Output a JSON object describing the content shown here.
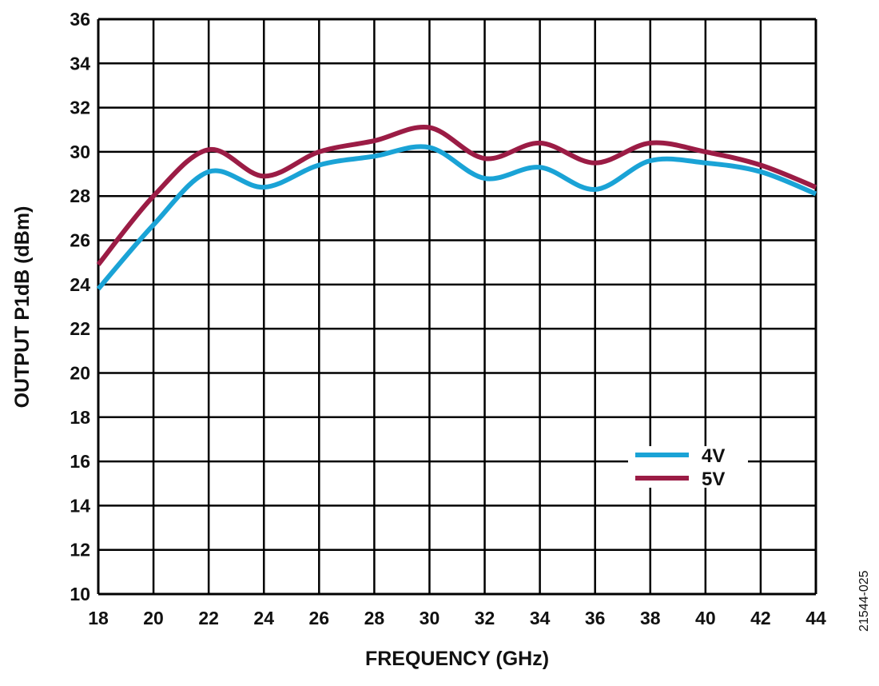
{
  "chart_data": {
    "type": "line",
    "title": "",
    "xlabel": "FREQUENCY (GHz)",
    "ylabel": "OUTPUT P1dB (dBm)",
    "xlim": [
      18,
      44
    ],
    "ylim": [
      10,
      36
    ],
    "xticks": [
      18,
      20,
      22,
      24,
      26,
      28,
      30,
      32,
      34,
      36,
      38,
      40,
      42,
      44
    ],
    "yticks": [
      10,
      12,
      14,
      16,
      18,
      20,
      22,
      24,
      26,
      28,
      30,
      32,
      34,
      36
    ],
    "grid": true,
    "legend_position": "lower-right",
    "x": [
      18,
      20,
      22,
      24,
      26,
      28,
      30,
      32,
      34,
      36,
      38,
      40,
      42,
      44
    ],
    "series": [
      {
        "name": "4V",
        "color": "#1aa3d6",
        "values": [
          23.8,
          26.7,
          29.1,
          28.4,
          29.4,
          29.8,
          30.2,
          28.8,
          29.3,
          28.3,
          29.6,
          29.5,
          29.1,
          28.1
        ]
      },
      {
        "name": "5V",
        "color": "#9b1c45",
        "values": [
          24.9,
          28.0,
          30.1,
          28.9,
          30.0,
          30.5,
          31.1,
          29.7,
          30.4,
          29.5,
          30.4,
          30.0,
          29.4,
          28.4
        ]
      }
    ],
    "figure_id": "21544-025"
  }
}
